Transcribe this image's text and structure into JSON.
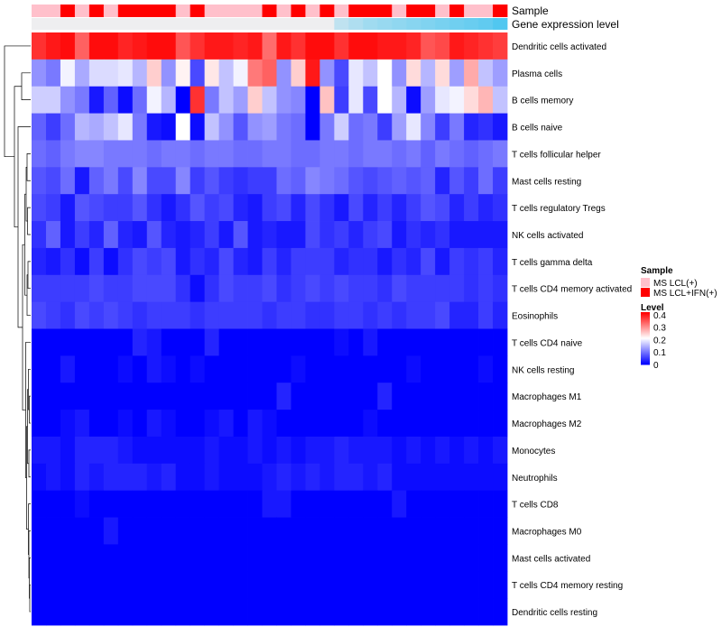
{
  "chart_data": {
    "type": "heatmap",
    "title": "",
    "annotation_labels": {
      "sample": "Sample",
      "gene_expression": "Gene expression level"
    },
    "legend": {
      "sample_title": "Sample",
      "sample_entries": [
        {
          "label": "MS LCL(+)",
          "color": "#FFC0CB"
        },
        {
          "label": "MS LCL+IFN(+)",
          "color": "#FF0000"
        }
      ],
      "level_title": "Level",
      "level_ticks": [
        "0.4",
        "0.3",
        "0.2",
        "0.1",
        "0"
      ],
      "level_tick_values": [
        0.4,
        0.3,
        0.2,
        0.1,
        0
      ],
      "level_range": [
        0,
        0.42
      ]
    },
    "sample_groups": [
      0,
      0,
      1,
      0,
      1,
      0,
      1,
      1,
      1,
      1,
      0,
      1,
      0,
      0,
      0,
      0,
      1,
      0,
      1,
      0,
      1,
      0,
      1,
      1,
      1,
      0,
      1,
      1,
      0,
      1,
      0,
      0,
      1
    ],
    "gene_expression_levels": [
      0,
      0,
      0,
      0,
      0,
      0,
      0,
      0,
      0,
      0,
      0,
      0,
      0,
      0,
      0,
      0,
      0,
      0,
      0,
      0,
      0,
      0.3,
      0.4,
      0.5,
      0.55,
      0.6,
      0.65,
      0.7,
      0.75,
      0.8,
      0.85,
      0.9,
      1.0
    ],
    "row_labels": [
      "Dendritic cells activated",
      "Plasma cells",
      "B cells memory",
      "B cells naive",
      "T cells follicular helper",
      "Mast cells resting",
      "T cells regulatory  Tregs",
      "NK cells activated",
      "T cells gamma delta",
      "T cells CD4 memory activated",
      "Eosinophils",
      "T cells CD4 naive",
      "NK cells resting",
      "Macrophages M1",
      "Macrophages M2",
      "Monocytes",
      "Neutrophils",
      "T cells CD8",
      "Macrophages M0",
      "Mast cells activated",
      "T cells CD4 memory resting",
      "Dendritic cells resting"
    ],
    "values": [
      [
        0.38,
        0.4,
        0.41,
        0.34,
        0.41,
        0.41,
        0.39,
        0.4,
        0.41,
        0.41,
        0.35,
        0.38,
        0.4,
        0.4,
        0.39,
        0.4,
        0.33,
        0.4,
        0.38,
        0.41,
        0.41,
        0.38,
        0.41,
        0.41,
        0.4,
        0.4,
        0.39,
        0.35,
        0.36,
        0.4,
        0.39,
        0.38,
        0.37
      ],
      [
        0.12,
        0.1,
        0.2,
        0.14,
        0.18,
        0.18,
        0.19,
        0.15,
        0.25,
        0.12,
        0.22,
        0.06,
        0.23,
        0.16,
        0.2,
        0.32,
        0.34,
        0.12,
        0.25,
        0.4,
        0.12,
        0.06,
        0.19,
        0.16,
        0.21,
        0.12,
        0.24,
        0.15,
        0.24,
        0.13,
        0.28,
        0.16,
        0.13
      ],
      [
        0.17,
        0.17,
        0.12,
        0.1,
        0.02,
        0.08,
        0.01,
        0.09,
        0.2,
        0.15,
        0.0,
        0.38,
        0.1,
        0.16,
        0.13,
        0.25,
        0.16,
        0.12,
        0.11,
        0.0,
        0.26,
        0.05,
        0.19,
        0.06,
        0.21,
        0.15,
        0.01,
        0.13,
        0.19,
        0.2,
        0.24,
        0.27,
        0.16
      ],
      [
        0.08,
        0.05,
        0.09,
        0.15,
        0.14,
        0.16,
        0.19,
        0.1,
        0.02,
        0.01,
        0.21,
        0.01,
        0.16,
        0.12,
        0.07,
        0.12,
        0.13,
        0.1,
        0.09,
        0.0,
        0.1,
        0.17,
        0.09,
        0.1,
        0.05,
        0.13,
        0.19,
        0.11,
        0.05,
        0.1,
        0.03,
        0.04,
        0.02
      ],
      [
        0.09,
        0.08,
        0.1,
        0.11,
        0.11,
        0.1,
        0.1,
        0.1,
        0.09,
        0.1,
        0.1,
        0.09,
        0.1,
        0.1,
        0.09,
        0.09,
        0.1,
        0.1,
        0.09,
        0.09,
        0.1,
        0.1,
        0.09,
        0.1,
        0.1,
        0.09,
        0.1,
        0.08,
        0.1,
        0.09,
        0.08,
        0.09,
        0.1
      ],
      [
        0.07,
        0.06,
        0.09,
        0.02,
        0.08,
        0.1,
        0.06,
        0.11,
        0.06,
        0.06,
        0.11,
        0.05,
        0.07,
        0.05,
        0.04,
        0.05,
        0.05,
        0.09,
        0.08,
        0.11,
        0.1,
        0.09,
        0.07,
        0.06,
        0.07,
        0.08,
        0.07,
        0.08,
        0.03,
        0.07,
        0.05,
        0.09,
        0.05
      ],
      [
        0.06,
        0.05,
        0.02,
        0.07,
        0.06,
        0.05,
        0.05,
        0.07,
        0.04,
        0.02,
        0.04,
        0.07,
        0.05,
        0.06,
        0.03,
        0.02,
        0.05,
        0.06,
        0.03,
        0.06,
        0.04,
        0.02,
        0.06,
        0.03,
        0.05,
        0.03,
        0.05,
        0.07,
        0.06,
        0.03,
        0.05,
        0.03,
        0.04
      ],
      [
        0.04,
        0.08,
        0.02,
        0.05,
        0.03,
        0.08,
        0.03,
        0.02,
        0.07,
        0.03,
        0.02,
        0.03,
        0.05,
        0.02,
        0.07,
        0.02,
        0.03,
        0.02,
        0.02,
        0.06,
        0.04,
        0.05,
        0.03,
        0.05,
        0.06,
        0.02,
        0.04,
        0.03,
        0.04,
        0.02,
        0.02,
        0.02,
        0.02
      ],
      [
        0.03,
        0.02,
        0.04,
        0.01,
        0.05,
        0.01,
        0.04,
        0.06,
        0.05,
        0.06,
        0.02,
        0.04,
        0.03,
        0.06,
        0.03,
        0.02,
        0.05,
        0.03,
        0.05,
        0.05,
        0.05,
        0.03,
        0.04,
        0.04,
        0.02,
        0.04,
        0.03,
        0.06,
        0.02,
        0.05,
        0.04,
        0.05,
        0.03
      ],
      [
        0.05,
        0.05,
        0.05,
        0.05,
        0.06,
        0.05,
        0.05,
        0.06,
        0.06,
        0.06,
        0.04,
        0.01,
        0.04,
        0.06,
        0.05,
        0.05,
        0.06,
        0.04,
        0.05,
        0.06,
        0.05,
        0.06,
        0.05,
        0.05,
        0.04,
        0.06,
        0.05,
        0.05,
        0.05,
        0.05,
        0.04,
        0.05,
        0.04
      ],
      [
        0.06,
        0.05,
        0.04,
        0.06,
        0.05,
        0.06,
        0.05,
        0.04,
        0.05,
        0.05,
        0.05,
        0.04,
        0.05,
        0.05,
        0.05,
        0.05,
        0.04,
        0.05,
        0.05,
        0.04,
        0.04,
        0.05,
        0.05,
        0.04,
        0.05,
        0.04,
        0.05,
        0.05,
        0.06,
        0.03,
        0.03,
        0.05,
        0.03
      ],
      [
        0.0,
        0.0,
        0.0,
        0.0,
        0.0,
        0.0,
        0.0,
        0.03,
        0.02,
        0.0,
        0.0,
        0.0,
        0.03,
        0.0,
        0.0,
        0.0,
        0.0,
        0.0,
        0.0,
        0.0,
        0.0,
        0.01,
        0.0,
        0.02,
        0.0,
        0.0,
        0.0,
        0.0,
        0.0,
        0.0,
        0.0,
        0.0,
        0.0
      ],
      [
        0.0,
        0.0,
        0.02,
        0.0,
        0.0,
        0.0,
        0.01,
        0.0,
        0.02,
        0.01,
        0.0,
        0.01,
        0.0,
        0.0,
        0.0,
        0.0,
        0.0,
        0.0,
        0.01,
        0.0,
        0.0,
        0.0,
        0.0,
        0.0,
        0.0,
        0.0,
        0.01,
        0.0,
        0.0,
        0.0,
        0.0,
        0.01,
        0.0
      ],
      [
        0.0,
        0.0,
        0.0,
        0.0,
        0.0,
        0.0,
        0.0,
        0.0,
        0.0,
        0.0,
        0.0,
        0.0,
        0.0,
        0.0,
        0.0,
        0.0,
        0.0,
        0.03,
        0.0,
        0.0,
        0.0,
        0.0,
        0.0,
        0.0,
        0.03,
        0.0,
        0.0,
        0.0,
        0.0,
        0.0,
        0.0,
        0.0,
        0.0
      ],
      [
        0.0,
        0.0,
        0.01,
        0.02,
        0.0,
        0.0,
        0.01,
        0.0,
        0.02,
        0.01,
        0.0,
        0.0,
        0.01,
        0.02,
        0.0,
        0.02,
        0.01,
        0.0,
        0.0,
        0.0,
        0.0,
        0.0,
        0.0,
        0.01,
        0.0,
        0.0,
        0.0,
        0.0,
        0.0,
        0.0,
        0.0,
        0.0,
        0.0
      ],
      [
        0.02,
        0.02,
        0.01,
        0.03,
        0.03,
        0.03,
        0.02,
        0.01,
        0.01,
        0.01,
        0.01,
        0.01,
        0.02,
        0.01,
        0.01,
        0.02,
        0.01,
        0.02,
        0.01,
        0.02,
        0.02,
        0.03,
        0.02,
        0.02,
        0.02,
        0.01,
        0.02,
        0.01,
        0.02,
        0.01,
        0.02,
        0.01,
        0.02
      ],
      [
        0.01,
        0.02,
        0.01,
        0.03,
        0.02,
        0.03,
        0.03,
        0.03,
        0.02,
        0.03,
        0.01,
        0.01,
        0.02,
        0.01,
        0.01,
        0.01,
        0.02,
        0.03,
        0.02,
        0.03,
        0.02,
        0.03,
        0.03,
        0.02,
        0.03,
        0.01,
        0.01,
        0.01,
        0.01,
        0.01,
        0.01,
        0.01,
        0.01
      ],
      [
        0.0,
        0.0,
        0.0,
        0.01,
        0.0,
        0.0,
        0.0,
        0.0,
        0.0,
        0.0,
        0.0,
        0.0,
        0.0,
        0.0,
        0.0,
        0.0,
        0.02,
        0.02,
        0.0,
        0.0,
        0.0,
        0.0,
        0.0,
        0.0,
        0.0,
        0.02,
        0.0,
        0.0,
        0.0,
        0.0,
        0.0,
        0.0,
        0.0
      ],
      [
        0.0,
        0.0,
        0.0,
        0.0,
        0.0,
        0.02,
        0.0,
        0.0,
        0.0,
        0.0,
        0.0,
        0.0,
        0.0,
        0.0,
        0.0,
        0.0,
        0.0,
        0.0,
        0.0,
        0.0,
        0.0,
        0.0,
        0.0,
        0.0,
        0.0,
        0.0,
        0.0,
        0.0,
        0.0,
        0.0,
        0.0,
        0.0,
        0.0
      ],
      [
        0.0,
        0.0,
        0.0,
        0.0,
        0.0,
        0.0,
        0.0,
        0.0,
        0.0,
        0.0,
        0.0,
        0.0,
        0.0,
        0.0,
        0.0,
        0.0,
        0.0,
        0.0,
        0.0,
        0.0,
        0.0,
        0.0,
        0.0,
        0.0,
        0.0,
        0.0,
        0.0,
        0.0,
        0.0,
        0.0,
        0.0,
        0.0,
        0.0
      ],
      [
        0.0,
        0.0,
        0.0,
        0.0,
        0.0,
        0.0,
        0.0,
        0.0,
        0.0,
        0.0,
        0.0,
        0.0,
        0.0,
        0.0,
        0.0,
        0.0,
        0.0,
        0.0,
        0.0,
        0.0,
        0.0,
        0.0,
        0.0,
        0.0,
        0.0,
        0.0,
        0.0,
        0.0,
        0.0,
        0.0,
        0.0,
        0.0,
        0.0
      ],
      [
        0.0,
        0.0,
        0.0,
        0.0,
        0.0,
        0.0,
        0.0,
        0.0,
        0.0,
        0.0,
        0.0,
        0.0,
        0.0,
        0.0,
        0.0,
        0.0,
        0.0,
        0.0,
        0.0,
        0.0,
        0.0,
        0.0,
        0.0,
        0.0,
        0.0,
        0.0,
        0.0,
        0.0,
        0.0,
        0.0,
        0.0,
        0.0,
        0.0
      ]
    ]
  }
}
